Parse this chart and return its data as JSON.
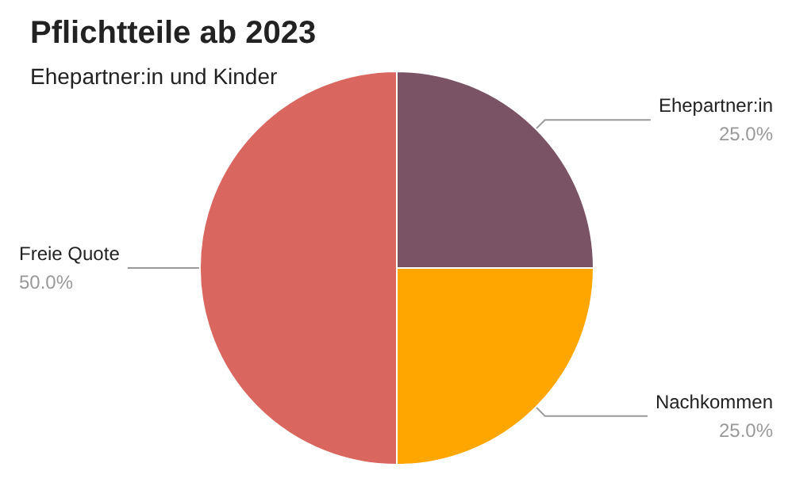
{
  "chart_data": {
    "type": "pie",
    "title": "Pflichtteile ab 2023",
    "subtitle": "Ehepartner:in und Kinder",
    "categories": [
      "Ehepartner:in",
      "Nachkommen",
      "Freie Quote"
    ],
    "values": [
      25,
      25,
      50
    ],
    "colors": [
      "#7a5364",
      "#ffa600",
      "#d9665f"
    ],
    "value_labels": [
      "25.0%",
      "25.0%",
      "50.0%"
    ],
    "legend": false
  }
}
